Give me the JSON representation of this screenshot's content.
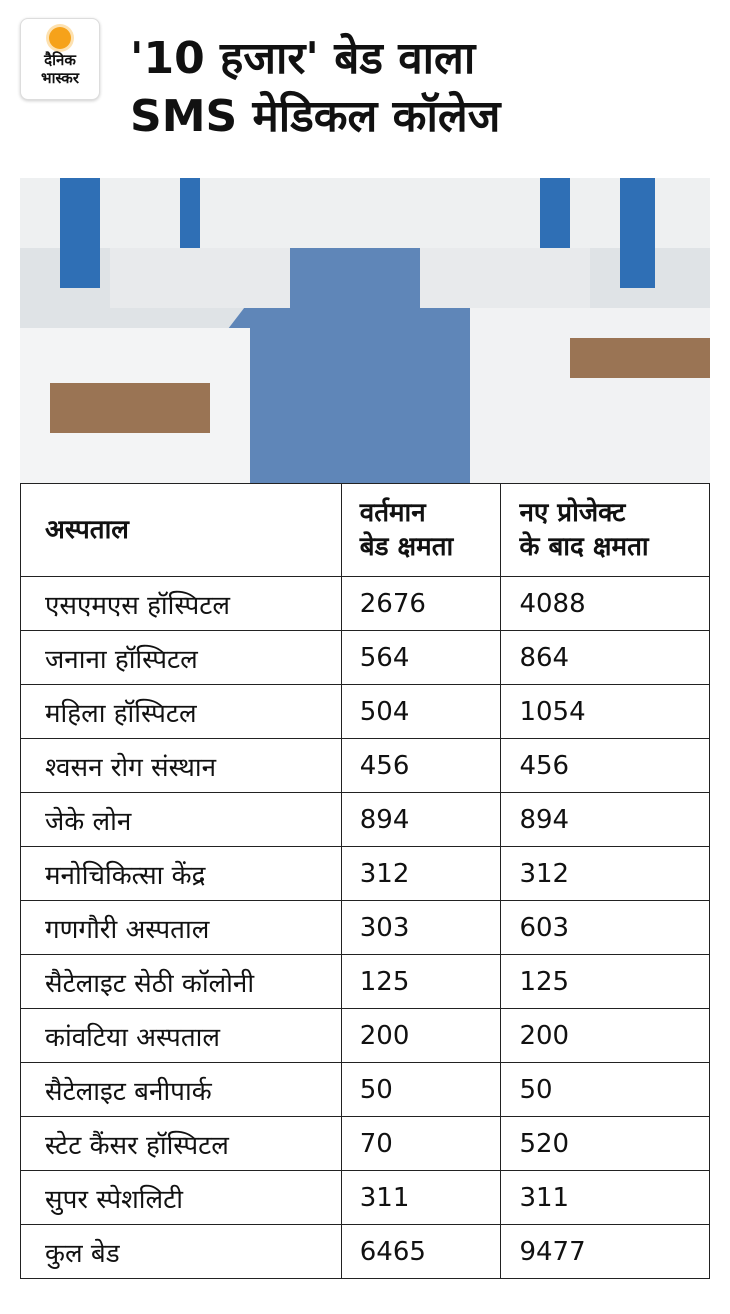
{
  "header": {
    "logo": [
      "दैनिक",
      "भास्कर"
    ],
    "title": [
      "'10 हजार' बेड वाला",
      "SMS मेडिकल कॉलेज"
    ]
  },
  "table": {
    "headers": [
      [
        "अस्पताल"
      ],
      [
        "वर्तमान",
        "बेड क्षमता"
      ],
      [
        "नए प्रोजेक्ट",
        "के बाद क्षमता"
      ]
    ],
    "rows": [
      [
        "एसएमएस हॉस्पिटल",
        2676,
        4088
      ],
      [
        "जनाना हॉस्पिटल",
        564,
        864
      ],
      [
        "महिला हॉस्पिटल",
        504,
        1054
      ],
      [
        "श्वसन रोग संस्थान",
        456,
        456
      ],
      [
        "जेके लोन",
        894,
        894
      ],
      [
        "मनोचिकित्सा केंद्र",
        312,
        312
      ],
      [
        "गणगौरी अस्पताल",
        303,
        603
      ],
      [
        "सैटेलाइट सेठी कॉलोनी",
        125,
        125
      ],
      [
        "कांवटिया अस्पताल",
        200,
        200
      ],
      [
        "सैटेलाइट बनीपार्क",
        50,
        50
      ],
      [
        "स्टेट कैंसर हॉस्पिटल",
        70,
        520
      ],
      [
        "सुपर स्पेशलिटी",
        311,
        311
      ],
      [
        "कुल बेड",
        6465,
        9477
      ]
    ]
  }
}
